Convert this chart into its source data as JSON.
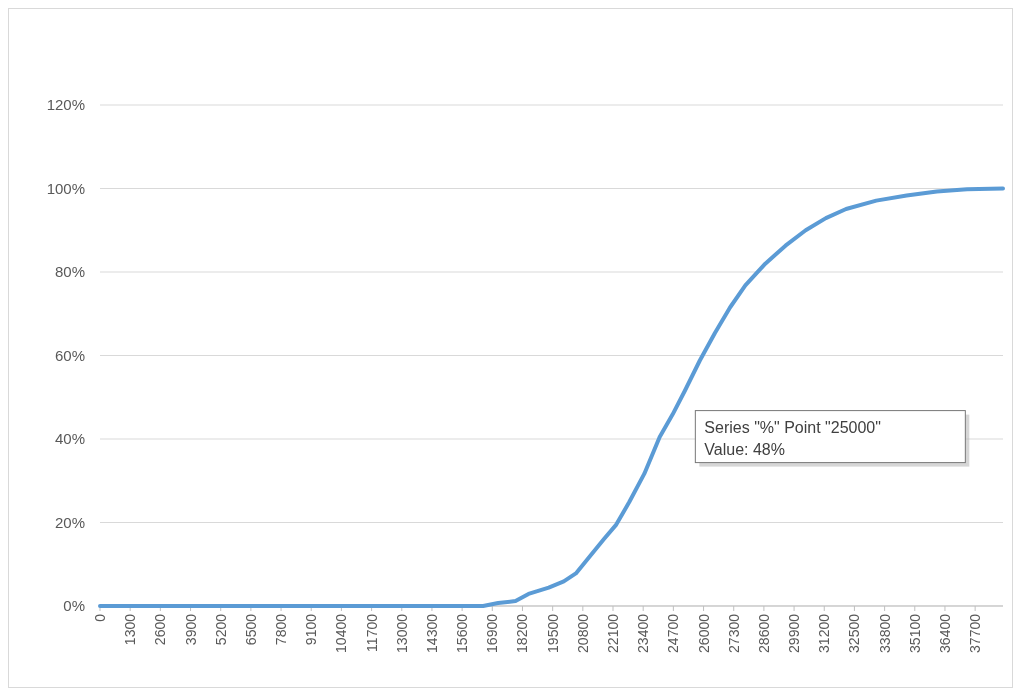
{
  "chart_data": {
    "type": "line",
    "x": [
      0,
      16505,
      17150,
      17900,
      18460,
      19330,
      19980,
      20500,
      21070,
      21720,
      22240,
      22800,
      23450,
      24110,
      24670,
      25190,
      25840,
      26490,
      27140,
      27800,
      28660,
      29530,
      30400,
      31270,
      32140,
      33440,
      34750,
      36050,
      37350,
      38900
    ],
    "series": [
      {
        "color": "#5b9bd5",
        "values": [
          0,
          0,
          0.7,
          1.2,
          2.9,
          4.4,
          5.9,
          7.8,
          11.7,
          16.1,
          19.5,
          24.9,
          31.7,
          40.5,
          45.9,
          51.5,
          58.8,
          65.4,
          71.5,
          76.8,
          82.0,
          86.3,
          90.0,
          92.9,
          95.1,
          97.1,
          98.3,
          99.3,
          99.8,
          100
        ]
      }
    ],
    "xlim": [
      0,
      38900
    ],
    "xticks": [
      0,
      1300,
      2600,
      3900,
      5200,
      6500,
      7800,
      9100,
      10400,
      11700,
      13000,
      14300,
      15600,
      16900,
      18200,
      19500,
      20800,
      22100,
      23400,
      24700,
      26000,
      27300,
      28600,
      29900,
      31200,
      32500,
      33800,
      35100,
      36400,
      37700
    ],
    "ylim": [
      0,
      120
    ],
    "yticks": [
      {
        "value": 0,
        "label": "0%"
      },
      {
        "value": 20,
        "label": "20%"
      },
      {
        "value": 40,
        "label": "40%"
      },
      {
        "value": 60,
        "label": "60%"
      },
      {
        "value": 80,
        "label": "80%"
      },
      {
        "value": 100,
        "label": "100%"
      },
      {
        "value": 120,
        "label": "120%"
      }
    ],
    "grid": "y",
    "marker": "none",
    "line_style": "solid",
    "annotations": [
      {
        "text": "Series \"%\" Point \"25000\"\nValue: 48%",
        "x": 25000,
        "y": 48
      }
    ]
  }
}
